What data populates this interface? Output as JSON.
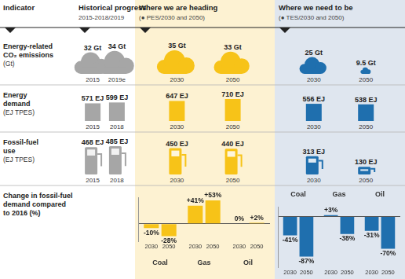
{
  "header": {
    "indicator": "Indicator",
    "columns": [
      {
        "title": "Historical progress",
        "subtitle": "2015-2018/2019",
        "color": "#a6a6a6"
      },
      {
        "title": "Where we are heading",
        "subtitle": "(● PES/2030 and 2050)",
        "color": "#f7c318"
      },
      {
        "title": "Where we need to be",
        "subtitle": "(● TES/2030 and 2050)",
        "color": "#1f6fae"
      }
    ]
  },
  "rows": [
    {
      "label": [
        "Energy-related",
        "CO₂ emissions"
      ],
      "unit": "(Gt)",
      "cells": [
        [
          {
            "year": "2015",
            "value": 32,
            "unit": "Gt"
          },
          {
            "year": "2019e",
            "value": 34,
            "unit": "Gt"
          }
        ],
        [
          {
            "year": "2030",
            "value": 35,
            "unit": "Gt"
          },
          {
            "year": "2050",
            "value": 33,
            "unit": "Gt"
          }
        ],
        [
          {
            "year": "2030",
            "value": 25,
            "unit": "Gt"
          },
          {
            "year": "2050",
            "value": 9.5,
            "unit": "Gt"
          }
        ]
      ]
    },
    {
      "label": [
        "Energy",
        "demand"
      ],
      "unit": "(EJ TPES)",
      "cells": [
        [
          {
            "year": "2015",
            "value": 571,
            "unit": "EJ"
          },
          {
            "year": "2018",
            "value": 599,
            "unit": "EJ"
          }
        ],
        [
          {
            "year": "2030",
            "value": 647,
            "unit": "EJ"
          },
          {
            "year": "2050",
            "value": 710,
            "unit": "EJ"
          }
        ],
        [
          {
            "year": "2030",
            "value": 556,
            "unit": "EJ"
          },
          {
            "year": "2050",
            "value": 538,
            "unit": "EJ"
          }
        ]
      ]
    },
    {
      "label": [
        "Fossil-fuel",
        "use"
      ],
      "unit": "(EJ TPES)",
      "cells": [
        [
          {
            "year": "2015",
            "value": 468,
            "unit": "EJ"
          },
          {
            "year": "2018",
            "value": 485,
            "unit": "EJ"
          }
        ],
        [
          {
            "year": "2030",
            "value": 450,
            "unit": "EJ"
          },
          {
            "year": "2050",
            "value": 440,
            "unit": "EJ"
          }
        ],
        [
          {
            "year": "2030",
            "value": 313,
            "unit": "EJ"
          },
          {
            "year": "2050",
            "value": 130,
            "unit": "EJ"
          }
        ]
      ]
    }
  ],
  "change_label": [
    "Change in fossil-fuel",
    "demand compared",
    "to 2016 (%)"
  ],
  "chart_data": [
    {
      "type": "bar",
      "categories": [
        "Coal",
        "Gas",
        "Oil"
      ],
      "series": [
        {
          "name": "2030",
          "color": "#f7c318",
          "values": [
            -10,
            41,
            0
          ],
          "value_labels": [
            "-10%",
            "+41%",
            "0%"
          ]
        },
        {
          "name": "2050",
          "color": "#f7c318",
          "values": [
            -28,
            53,
            2
          ],
          "value_labels": [
            "-28%",
            "+53%",
            "+2%"
          ]
        }
      ],
      "ylim": [
        -40,
        60
      ],
      "yticks": [
        0
      ],
      "grid": true,
      "data_labels": true,
      "tick_labels": "x"
    },
    {
      "type": "bar",
      "categories": [
        "Coal",
        "Gas",
        "Oil"
      ],
      "series": [
        {
          "name": "2030",
          "color": "#1f6fae",
          "values": [
            -41,
            3,
            -31
          ],
          "value_labels": [
            "-41%",
            "+3%",
            "-31%"
          ]
        },
        {
          "name": "2050",
          "color": "#1f6fae",
          "values": [
            -87,
            -38,
            -70
          ],
          "value_labels": [
            "-87%",
            "-38%",
            "-70%"
          ]
        }
      ],
      "ylim": [
        -110,
        20
      ],
      "yticks": [
        0
      ],
      "grid": true,
      "data_labels": true,
      "tick_labels": "x"
    }
  ]
}
